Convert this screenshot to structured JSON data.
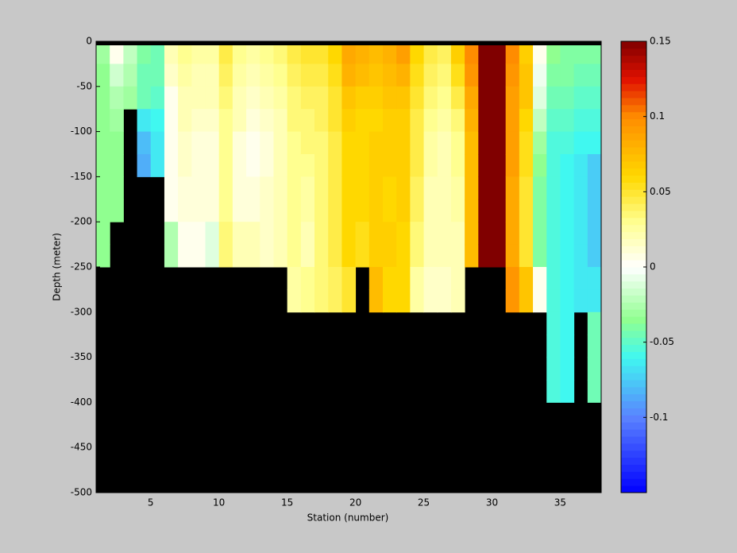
{
  "chart_data": {
    "type": "heatmap",
    "x_label": "Station (number)",
    "y_label": "Depth (meter)",
    "xlim": [
      1,
      38
    ],
    "ylim": [
      -500,
      0
    ],
    "xticks": [
      5,
      10,
      15,
      20,
      25,
      30,
      35
    ],
    "yticks": [
      0,
      -50,
      -100,
      -150,
      -200,
      -250,
      -300,
      -350,
      -400,
      -450,
      -500
    ],
    "x_edges": [
      1,
      2,
      3,
      4,
      5,
      6,
      7,
      8,
      9,
      10,
      11,
      12,
      13,
      14,
      15,
      16,
      17,
      18,
      19,
      20,
      21,
      22,
      23,
      24,
      25,
      26,
      27,
      28,
      29,
      30,
      31,
      32,
      33,
      34,
      35,
      36,
      37,
      38
    ],
    "depth_edges": [
      0,
      -25,
      -50,
      -75,
      -100,
      -125,
      -150,
      -175,
      -200,
      -225,
      -250,
      -275,
      -300,
      -325,
      -350,
      -375,
      -400,
      -425,
      -450,
      -475,
      -500
    ],
    "z": [
      [
        -0.03,
        -0.035,
        -0.035,
        -0.035,
        -0.035,
        -0.035,
        -0.035,
        -0.035,
        -0.035,
        -0.035,
        null,
        null,
        null,
        null,
        null,
        null,
        null,
        null,
        null,
        null
      ],
      [
        0.005,
        -0.015,
        -0.025,
        -0.03,
        -0.035,
        -0.035,
        -0.035,
        -0.035,
        null,
        null,
        null,
        null,
        null,
        null,
        null,
        null,
        null,
        null,
        null,
        null
      ],
      [
        -0.02,
        -0.025,
        -0.03,
        null,
        null,
        null,
        null,
        null,
        null,
        null,
        null,
        null,
        null,
        null,
        null,
        null,
        null,
        null,
        null,
        null
      ],
      [
        -0.04,
        -0.045,
        -0.045,
        -0.065,
        -0.08,
        -0.085,
        null,
        null,
        null,
        null,
        null,
        null,
        null,
        null,
        null,
        null,
        null,
        null,
        null,
        null
      ],
      [
        -0.045,
        -0.045,
        -0.05,
        -0.06,
        -0.065,
        -0.065,
        null,
        null,
        null,
        null,
        null,
        null,
        null,
        null,
        null,
        null,
        null,
        null,
        null,
        null
      ],
      [
        0.02,
        0.015,
        0.005,
        0.005,
        0.005,
        0.005,
        0.005,
        0.005,
        -0.025,
        -0.025,
        null,
        null,
        null,
        null,
        null,
        null,
        null,
        null,
        null,
        null
      ],
      [
        0.03,
        0.025,
        0.02,
        0.02,
        0.015,
        0.015,
        0.01,
        0.01,
        0.005,
        0.005,
        null,
        null,
        null,
        null,
        null,
        null,
        null,
        null,
        null,
        null
      ],
      [
        0.025,
        0.02,
        0.02,
        0.015,
        0.01,
        0.01,
        0.01,
        0.01,
        0.005,
        0.005,
        null,
        null,
        null,
        null,
        null,
        null,
        null,
        null,
        null,
        null
      ],
      [
        0.025,
        0.02,
        0.02,
        0.015,
        0.01,
        0.01,
        0.01,
        0.01,
        -0.01,
        -0.01,
        null,
        null,
        null,
        null,
        null,
        null,
        null,
        null,
        null,
        null
      ],
      [
        0.045,
        0.04,
        0.035,
        0.03,
        0.03,
        0.03,
        0.03,
        0.03,
        0.035,
        0.035,
        null,
        null,
        null,
        null,
        null,
        null,
        null,
        null,
        null,
        null
      ],
      [
        0.03,
        0.025,
        0.02,
        0.02,
        0.01,
        0.01,
        0.01,
        0.01,
        0.02,
        0.02,
        null,
        null,
        null,
        null,
        null,
        null,
        null,
        null,
        null,
        null
      ],
      [
        0.025,
        0.02,
        0.015,
        0.01,
        0.005,
        0.005,
        0.01,
        0.01,
        0.02,
        0.02,
        null,
        null,
        null,
        null,
        null,
        null,
        null,
        null,
        null,
        null
      ],
      [
        0.03,
        0.025,
        0.02,
        0.015,
        0.01,
        0.01,
        0.015,
        0.015,
        0.015,
        0.015,
        null,
        null,
        null,
        null,
        null,
        null,
        null,
        null,
        null,
        null
      ],
      [
        0.035,
        0.03,
        0.025,
        0.02,
        0.02,
        0.02,
        0.02,
        0.02,
        0.02,
        0.02,
        null,
        null,
        null,
        null,
        null,
        null,
        null,
        null,
        null,
        null
      ],
      [
        0.045,
        0.04,
        0.035,
        0.035,
        0.03,
        0.03,
        0.03,
        0.03,
        0.03,
        0.03,
        0.025,
        0.025,
        null,
        null,
        null,
        null,
        null,
        null,
        null,
        null
      ],
      [
        0.05,
        0.045,
        0.04,
        0.035,
        0.035,
        0.03,
        0.025,
        0.025,
        0.02,
        0.02,
        0.03,
        0.03,
        null,
        null,
        null,
        null,
        null,
        null,
        null,
        null
      ],
      [
        0.05,
        0.045,
        0.04,
        0.04,
        0.035,
        0.035,
        0.035,
        0.035,
        0.035,
        0.035,
        0.035,
        0.035,
        null,
        null,
        null,
        null,
        null,
        null,
        null,
        null
      ],
      [
        0.06,
        0.055,
        0.05,
        0.05,
        0.045,
        0.045,
        0.045,
        0.045,
        0.045,
        0.045,
        0.04,
        0.04,
        null,
        null,
        null,
        null,
        null,
        null,
        null,
        null
      ],
      [
        0.085,
        0.08,
        0.07,
        0.065,
        0.06,
        0.06,
        0.06,
        0.06,
        0.06,
        0.06,
        0.05,
        0.05,
        null,
        null,
        null,
        null,
        null,
        null,
        null,
        null
      ],
      [
        0.08,
        0.075,
        0.065,
        0.06,
        0.06,
        0.06,
        0.06,
        0.06,
        0.055,
        0.055,
        null,
        null,
        null,
        null,
        null,
        null,
        null,
        null,
        null,
        null
      ],
      [
        0.075,
        0.07,
        0.065,
        0.06,
        0.065,
        0.065,
        0.065,
        0.065,
        0.065,
        0.065,
        0.075,
        0.075,
        null,
        null,
        null,
        null,
        null,
        null,
        null,
        null
      ],
      [
        0.08,
        0.075,
        0.07,
        0.065,
        0.065,
        0.065,
        0.06,
        0.06,
        0.065,
        0.065,
        0.06,
        0.06,
        null,
        null,
        null,
        null,
        null,
        null,
        null,
        null
      ],
      [
        0.09,
        0.08,
        0.07,
        0.065,
        0.065,
        0.065,
        0.065,
        0.065,
        0.06,
        0.06,
        0.06,
        0.06,
        null,
        null,
        null,
        null,
        null,
        null,
        null,
        null
      ],
      [
        0.06,
        0.055,
        0.05,
        0.045,
        0.045,
        0.045,
        0.04,
        0.04,
        0.035,
        0.035,
        0.025,
        0.025,
        null,
        null,
        null,
        null,
        null,
        null,
        null,
        null
      ],
      [
        0.045,
        0.04,
        0.035,
        0.03,
        0.025,
        0.025,
        0.02,
        0.02,
        0.02,
        0.02,
        0.015,
        0.015,
        null,
        null,
        null,
        null,
        null,
        null,
        null,
        null
      ],
      [
        0.04,
        0.035,
        0.03,
        0.025,
        0.02,
        0.02,
        0.02,
        0.02,
        0.02,
        0.02,
        0.015,
        0.015,
        null,
        null,
        null,
        null,
        null,
        null,
        null,
        null
      ],
      [
        0.065,
        0.055,
        0.045,
        0.035,
        0.03,
        0.03,
        0.025,
        0.025,
        0.02,
        0.02,
        0.02,
        0.02,
        null,
        null,
        null,
        null,
        null,
        null,
        null,
        null
      ],
      [
        0.1,
        0.095,
        0.085,
        0.08,
        0.075,
        0.075,
        0.075,
        0.075,
        0.075,
        0.075,
        null,
        null,
        null,
        null,
        null,
        null,
        null,
        null,
        null,
        null
      ],
      [
        0.15,
        0.15,
        0.15,
        0.15,
        0.15,
        0.15,
        0.15,
        0.15,
        0.15,
        0.15,
        null,
        null,
        null,
        null,
        null,
        null,
        null,
        null,
        null,
        null
      ],
      [
        0.15,
        0.15,
        0.15,
        0.15,
        0.15,
        0.15,
        0.15,
        0.15,
        0.15,
        0.15,
        null,
        null,
        null,
        null,
        null,
        null,
        null,
        null,
        null,
        null
      ],
      [
        0.1,
        0.095,
        0.09,
        0.09,
        0.09,
        0.09,
        0.085,
        0.085,
        0.085,
        0.085,
        0.095,
        0.095,
        null,
        null,
        null,
        null,
        null,
        null,
        null,
        null
      ],
      [
        0.065,
        0.07,
        0.07,
        0.06,
        0.055,
        0.055,
        0.05,
        0.05,
        0.05,
        0.05,
        0.07,
        0.07,
        null,
        null,
        null,
        null,
        null,
        null,
        null,
        null
      ],
      [
        0.005,
        -0.005,
        -0.01,
        -0.02,
        -0.03,
        -0.035,
        -0.04,
        -0.04,
        -0.04,
        -0.04,
        0.005,
        0.005,
        null,
        null,
        null,
        null,
        null,
        null,
        null,
        null
      ],
      [
        -0.035,
        -0.04,
        -0.045,
        -0.05,
        -0.055,
        -0.055,
        -0.055,
        -0.055,
        -0.055,
        -0.055,
        -0.055,
        -0.055,
        -0.055,
        -0.055,
        -0.055,
        -0.055,
        null,
        null,
        null,
        null
      ],
      [
        -0.04,
        -0.04,
        -0.045,
        -0.05,
        -0.055,
        -0.06,
        -0.06,
        -0.06,
        -0.06,
        -0.06,
        -0.06,
        -0.06,
        -0.06,
        -0.06,
        -0.06,
        -0.06,
        null,
        null,
        null,
        null
      ],
      [
        -0.04,
        -0.045,
        -0.05,
        -0.055,
        -0.06,
        -0.065,
        -0.065,
        -0.065,
        -0.065,
        -0.065,
        -0.065,
        -0.065,
        null,
        null,
        null,
        null,
        null,
        null,
        null,
        null
      ],
      [
        -0.04,
        -0.045,
        -0.05,
        -0.055,
        -0.06,
        -0.075,
        -0.075,
        -0.075,
        -0.075,
        -0.075,
        -0.065,
        -0.065,
        -0.045,
        -0.045,
        -0.045,
        -0.045,
        null,
        null,
        null,
        null
      ]
    ],
    "clim": [
      -0.15,
      0.15
    ],
    "cticks": [
      0.15,
      0.1,
      0.05,
      0,
      -0.05,
      -0.1
    ],
    "colormap": [
      {
        "value": -0.15,
        "color": "#0000ff"
      },
      {
        "value": -0.1,
        "color": "#5a82ff"
      },
      {
        "value": -0.06,
        "color": "#40f8f0"
      },
      {
        "value": -0.035,
        "color": "#90ff90"
      },
      {
        "value": 0,
        "color": "#ffffff"
      },
      {
        "value": 0.03,
        "color": "#ffff90"
      },
      {
        "value": 0.06,
        "color": "#ffd800"
      },
      {
        "value": 0.1,
        "color": "#ff8c00"
      },
      {
        "value": 0.125,
        "color": "#e01000"
      },
      {
        "value": 0.15,
        "color": "#800000"
      }
    ],
    "mask_color": "#000000"
  }
}
